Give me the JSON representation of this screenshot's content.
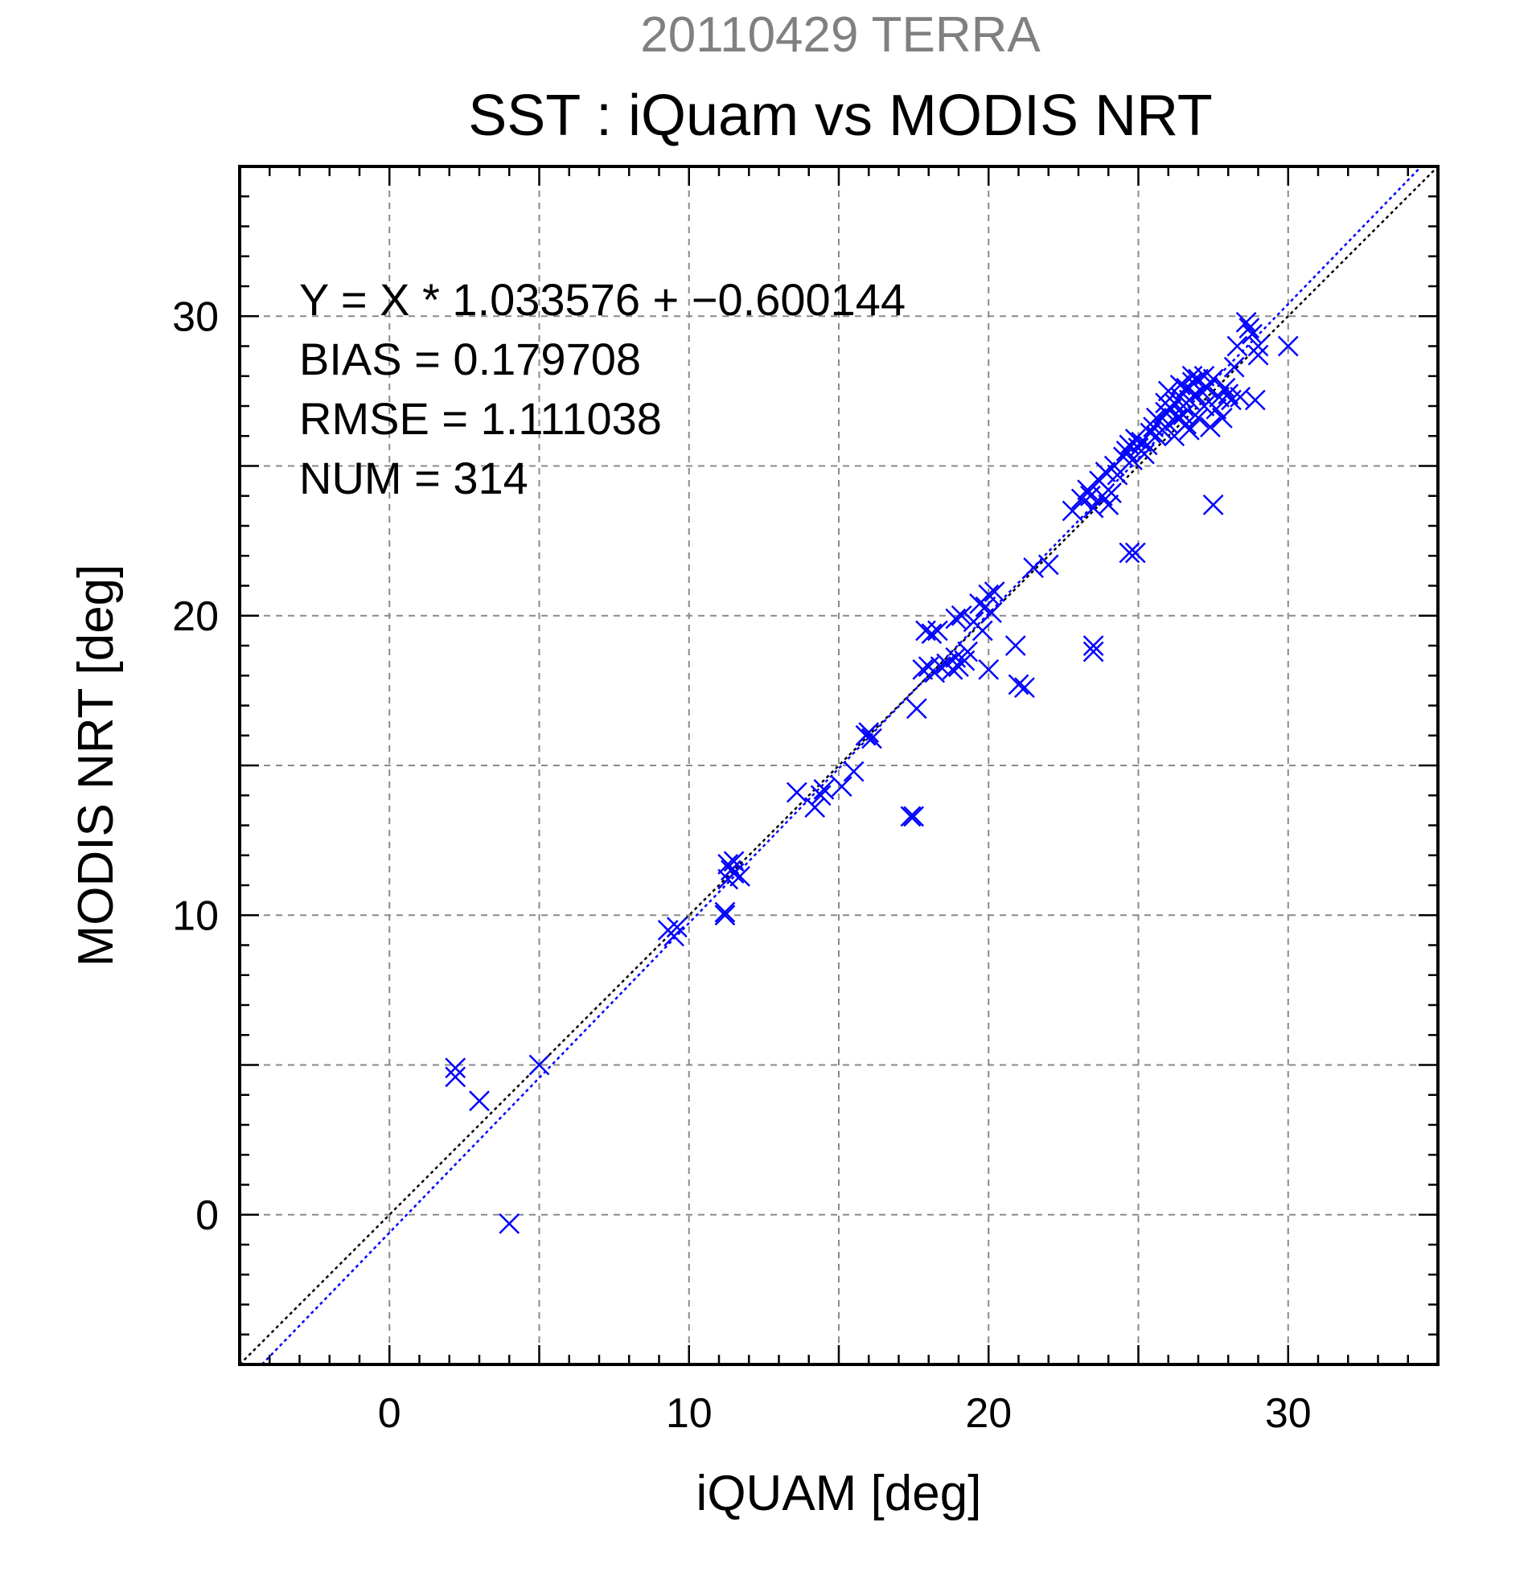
{
  "chart_data": {
    "type": "scatter",
    "date_label": "20110429 TERRA",
    "title": "SST : iQuam vs MODIS NRT",
    "xlabel": "iQUAM [deg]",
    "ylabel": "MODIS NRT [deg]",
    "xlim": [
      -5,
      35
    ],
    "ylim": [
      -5,
      35
    ],
    "x_ticks": [
      0,
      10,
      20,
      30
    ],
    "y_ticks": [
      0,
      10,
      20,
      30
    ],
    "x_tick_labels": [
      "0",
      "10",
      "20",
      "30"
    ],
    "y_tick_labels": [
      "0",
      "10",
      "20",
      "30"
    ],
    "grid": true,
    "marker": "x",
    "point_color": "#0000ff",
    "stats": {
      "equation": "Y = X * 1.033576 + −0.600144",
      "bias": "BIAS = 0.179708",
      "rmse": "RMSE = 1.111038",
      "num": "NUM = 314"
    },
    "lines": [
      {
        "kind": "one-to-one",
        "slope": 1,
        "intercept": 0,
        "color": "#000000",
        "style": "dotted"
      },
      {
        "kind": "regression",
        "slope": 1.033576,
        "intercept": -0.600144,
        "color": "#0000ff",
        "style": "dotted"
      }
    ],
    "points": [
      [
        2.2,
        4.9
      ],
      [
        2.2,
        4.6
      ],
      [
        3.0,
        3.8
      ],
      [
        4.0,
        -0.3
      ],
      [
        5.0,
        5.0
      ],
      [
        9.3,
        9.5
      ],
      [
        9.5,
        9.3
      ],
      [
        9.6,
        9.6
      ],
      [
        11.2,
        10.0
      ],
      [
        11.2,
        10.1
      ],
      [
        11.3,
        11.2
      ],
      [
        11.4,
        11.5
      ],
      [
        11.5,
        11.4
      ],
      [
        11.5,
        11.8
      ],
      [
        11.7,
        11.3
      ],
      [
        11.3,
        11.7
      ],
      [
        13.6,
        14.1
      ],
      [
        14.2,
        13.6
      ],
      [
        14.4,
        14.0
      ],
      [
        14.5,
        14.2
      ],
      [
        15.1,
        14.3
      ],
      [
        15.5,
        14.8
      ],
      [
        15.9,
        16.0
      ],
      [
        16.1,
        15.9
      ],
      [
        16.0,
        16.1
      ],
      [
        17.4,
        13.3
      ],
      [
        17.5,
        13.3
      ],
      [
        17.6,
        16.9
      ],
      [
        17.8,
        18.2
      ],
      [
        18.0,
        18.3
      ],
      [
        17.9,
        19.5
      ],
      [
        18.1,
        19.4
      ],
      [
        18.3,
        19.5
      ],
      [
        18.2,
        18.1
      ],
      [
        18.4,
        18.3
      ],
      [
        18.6,
        18.4
      ],
      [
        18.8,
        18.2
      ],
      [
        18.9,
        18.6
      ],
      [
        19.0,
        18.3
      ],
      [
        19.2,
        18.5
      ],
      [
        18.9,
        19.9
      ],
      [
        19.1,
        20.0
      ],
      [
        19.3,
        18.8
      ],
      [
        19.5,
        19.8
      ],
      [
        19.7,
        20.4
      ],
      [
        19.8,
        19.5
      ],
      [
        19.9,
        20.3
      ],
      [
        20.0,
        20.7
      ],
      [
        20.1,
        20.1
      ],
      [
        20.2,
        20.8
      ],
      [
        20.0,
        18.2
      ],
      [
        20.9,
        19.0
      ],
      [
        21.0,
        17.7
      ],
      [
        21.2,
        17.6
      ],
      [
        21.5,
        21.6
      ],
      [
        22.0,
        21.7
      ],
      [
        22.8,
        23.5
      ],
      [
        23.1,
        23.9
      ],
      [
        23.3,
        24.2
      ],
      [
        23.4,
        24.0
      ],
      [
        23.5,
        23.6
      ],
      [
        23.7,
        24.5
      ],
      [
        23.8,
        24.0
      ],
      [
        23.9,
        24.8
      ],
      [
        24.0,
        23.7
      ],
      [
        24.1,
        24.1
      ],
      [
        24.2,
        25.0
      ],
      [
        24.3,
        24.7
      ],
      [
        24.5,
        25.3
      ],
      [
        24.6,
        25.5
      ],
      [
        24.7,
        25.7
      ],
      [
        24.8,
        25.2
      ],
      [
        24.9,
        25.9
      ],
      [
        25.0,
        25.6
      ],
      [
        25.1,
        25.8
      ],
      [
        25.2,
        25.4
      ],
      [
        25.3,
        25.7
      ],
      [
        25.4,
        26.1
      ],
      [
        25.5,
        26.3
      ],
      [
        25.6,
        26.0
      ],
      [
        25.7,
        26.5
      ],
      [
        25.8,
        26.2
      ],
      [
        25.9,
        26.8
      ],
      [
        26.0,
        26.4
      ],
      [
        26.1,
        26.9
      ],
      [
        26.2,
        27.1
      ],
      [
        26.3,
        26.6
      ],
      [
        26.4,
        27.3
      ],
      [
        26.5,
        27.0
      ],
      [
        26.6,
        27.6
      ],
      [
        26.7,
        27.2
      ],
      [
        26.8,
        27.8
      ],
      [
        26.9,
        27.4
      ],
      [
        27.0,
        27.9
      ],
      [
        27.1,
        27.5
      ],
      [
        27.2,
        28.0
      ],
      [
        27.3,
        27.6
      ],
      [
        27.5,
        27.9
      ],
      [
        27.7,
        27.3
      ],
      [
        27.9,
        27.6
      ],
      [
        28.1,
        27.2
      ],
      [
        26.2,
        26.0
      ],
      [
        26.6,
        26.4
      ],
      [
        27.0,
        26.6
      ],
      [
        27.4,
        26.3
      ],
      [
        27.8,
        26.6
      ],
      [
        26.0,
        27.5
      ],
      [
        26.4,
        27.7
      ],
      [
        26.8,
        28.0
      ],
      [
        25.6,
        26.6
      ],
      [
        25.9,
        27.1
      ],
      [
        26.5,
        26.7
      ],
      [
        27.2,
        27.0
      ],
      [
        26.7,
        26.2
      ],
      [
        27.6,
        26.9
      ],
      [
        28.0,
        27.4
      ],
      [
        27.5,
        23.7
      ],
      [
        24.7,
        22.1
      ],
      [
        24.9,
        22.1
      ],
      [
        23.5,
        19.0
      ],
      [
        23.5,
        18.8
      ],
      [
        28.3,
        29.0
      ],
      [
        28.6,
        29.8
      ],
      [
        28.7,
        29.6
      ],
      [
        28.8,
        29.4
      ],
      [
        29.0,
        29.0
      ],
      [
        29.0,
        28.7
      ],
      [
        28.9,
        27.2
      ],
      [
        30.0,
        29.0
      ],
      [
        28.4,
        27.3
      ],
      [
        28.2,
        28.3
      ]
    ]
  }
}
